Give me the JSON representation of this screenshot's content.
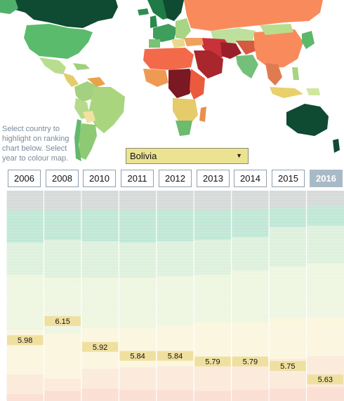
{
  "controls": {
    "hint_text": "Select country to highlight on ranking chart below. Select year to colour map.",
    "country_select": {
      "selected": "Bolivia"
    },
    "years": [
      {
        "label": "2006",
        "active": false
      },
      {
        "label": "2008",
        "active": false
      },
      {
        "label": "2010",
        "active": false
      },
      {
        "label": "2011",
        "active": false
      },
      {
        "label": "2012",
        "active": false
      },
      {
        "label": "2013",
        "active": false
      },
      {
        "label": "2014",
        "active": false
      },
      {
        "label": "2015",
        "active": false
      },
      {
        "label": "2016",
        "active": true
      }
    ]
  },
  "colors": {
    "highlight": "#efe0a0",
    "active_year": "#a9bac7",
    "band_grey": "#d4d8d6",
    "band_teal": "#bde6d4",
    "band_green": "#dcf0db",
    "band_light": "#edf5df",
    "band_cream": "#fbf5dd",
    "band_peach": "#fbe9d8",
    "band_pink": "#fbdcd0"
  },
  "chart_data": {
    "type": "bump",
    "categories": [
      "2006",
      "2008",
      "2010",
      "2011",
      "2012",
      "2013",
      "2014",
      "2015",
      "2016"
    ],
    "highlight_series": {
      "values": [
        5.98,
        6.15,
        5.92,
        5.84,
        5.84,
        5.79,
        5.79,
        5.75,
        5.63
      ],
      "labels": [
        "5.98",
        "6.15",
        "5.92",
        "5.84",
        "5.84",
        "5.79",
        "5.79",
        "5.75",
        "5.63"
      ]
    },
    "ylim": [
      5.5,
      6.25
    ]
  }
}
